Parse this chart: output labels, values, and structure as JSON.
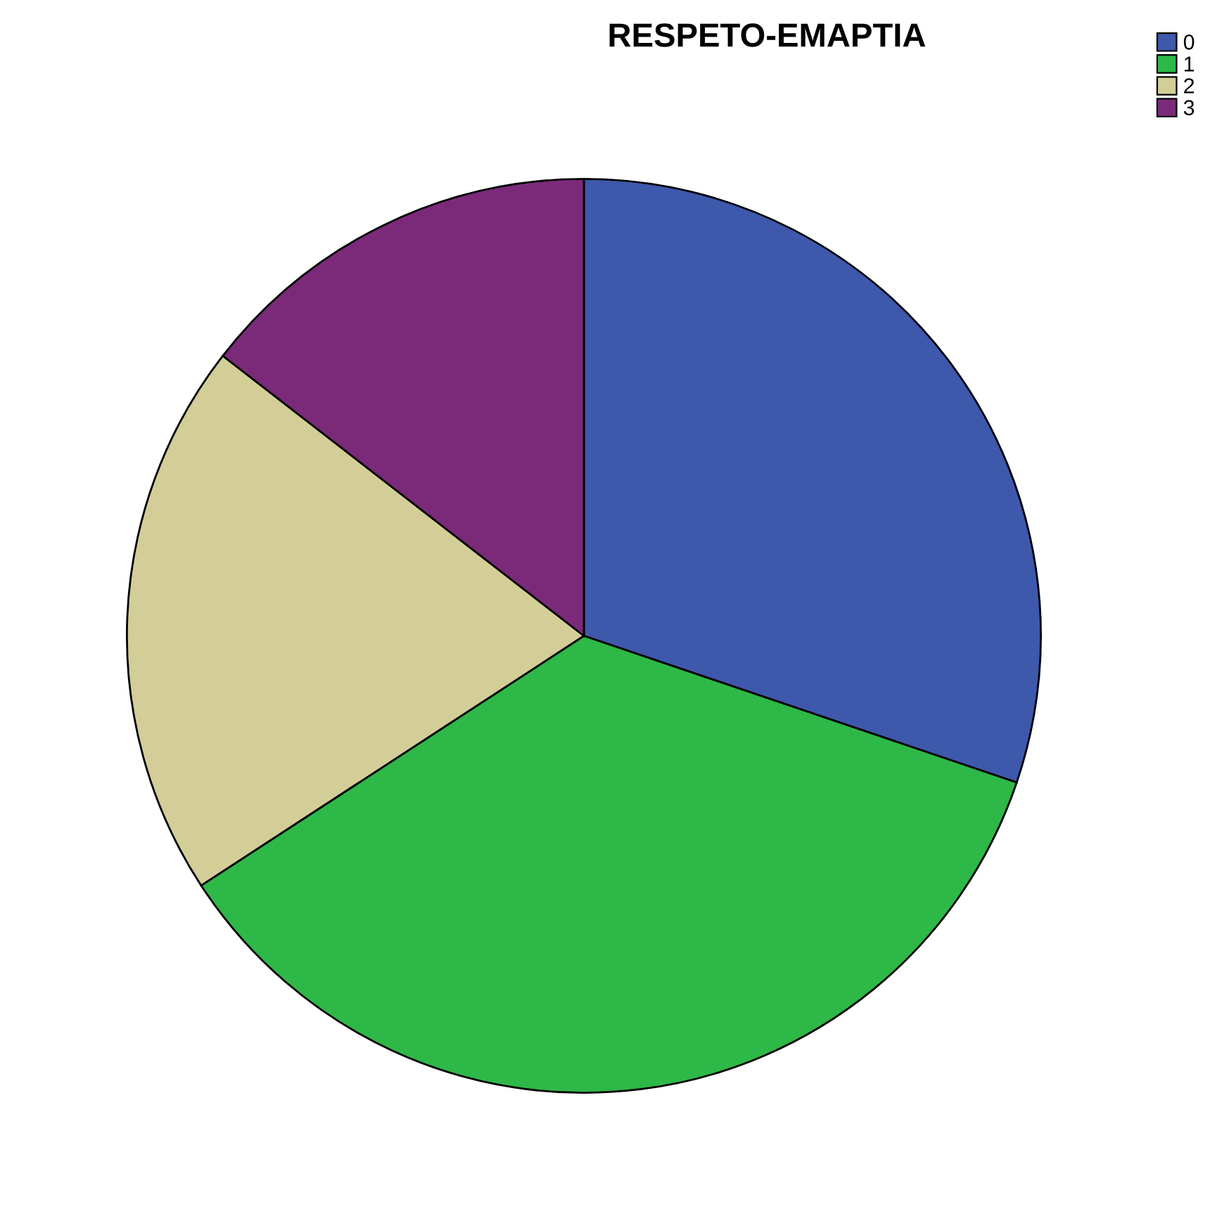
{
  "chart_data": {
    "type": "pie",
    "title": "RESPETO-EMAPTIA",
    "categories": [
      "0",
      "1",
      "2",
      "3"
    ],
    "values": [
      30.2,
      35.6,
      19.7,
      14.5
    ],
    "colors": [
      "#3e58ac",
      "#2eb848",
      "#d3ce97",
      "#7b2a7a"
    ],
    "legend": "top right"
  }
}
